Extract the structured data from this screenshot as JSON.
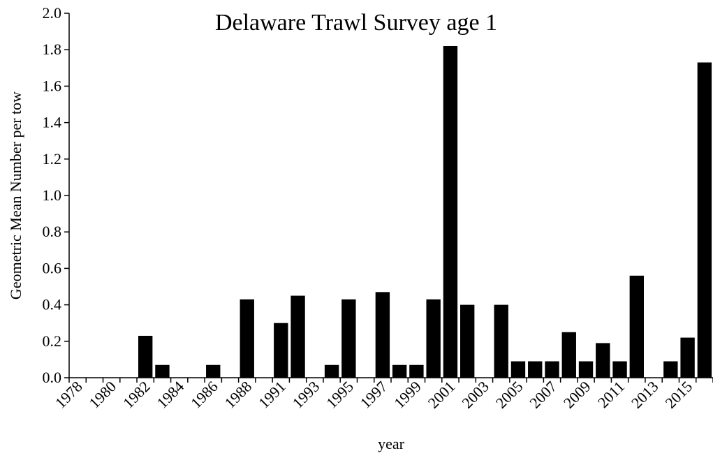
{
  "chart_data": {
    "type": "bar",
    "title": "Delaware Trawl Survey age 1",
    "xlabel": "year",
    "ylabel": "Geometric Mean Number per tow",
    "ylim": [
      0,
      2.0
    ],
    "yticks": [
      "0.0",
      "0.2",
      "0.4",
      "0.6",
      "0.8",
      "1.0",
      "1.2",
      "1.4",
      "1.6",
      "1.8",
      "2.0"
    ],
    "grid": false,
    "bar_color": "#000000",
    "categories": [
      "1978",
      "1979",
      "1980",
      "1981",
      "1982",
      "1983",
      "1984",
      "1985",
      "1986",
      "1987",
      "1988",
      "1990",
      "1991",
      "1992",
      "1993",
      "1994",
      "1995",
      "1996",
      "1997",
      "1998",
      "1999",
      "2000",
      "2001",
      "2002",
      "2003",
      "2004",
      "2005",
      "2006",
      "2007",
      "2008",
      "2009",
      "2010",
      "2011",
      "2012",
      "2013",
      "2014",
      "2015",
      "2016"
    ],
    "xtick_labels": [
      "1978",
      "1980",
      "1982",
      "1984",
      "1986",
      "1988",
      "1991",
      "1993",
      "1995",
      "1997",
      "1999",
      "2001",
      "2003",
      "2005",
      "2007",
      "2009",
      "2011",
      "2013",
      "2015"
    ],
    "values": [
      0,
      0,
      0,
      0,
      0.23,
      0.07,
      0,
      0,
      0.07,
      0,
      0.43,
      0,
      0.3,
      0.45,
      0,
      0.07,
      0.43,
      0,
      0.47,
      0.07,
      0.07,
      0.43,
      1.82,
      0.4,
      0,
      0.4,
      0.09,
      0.09,
      0.09,
      0.25,
      0.09,
      0.19,
      0.09,
      0.56,
      0,
      0.09,
      0.22,
      1.73
    ]
  }
}
